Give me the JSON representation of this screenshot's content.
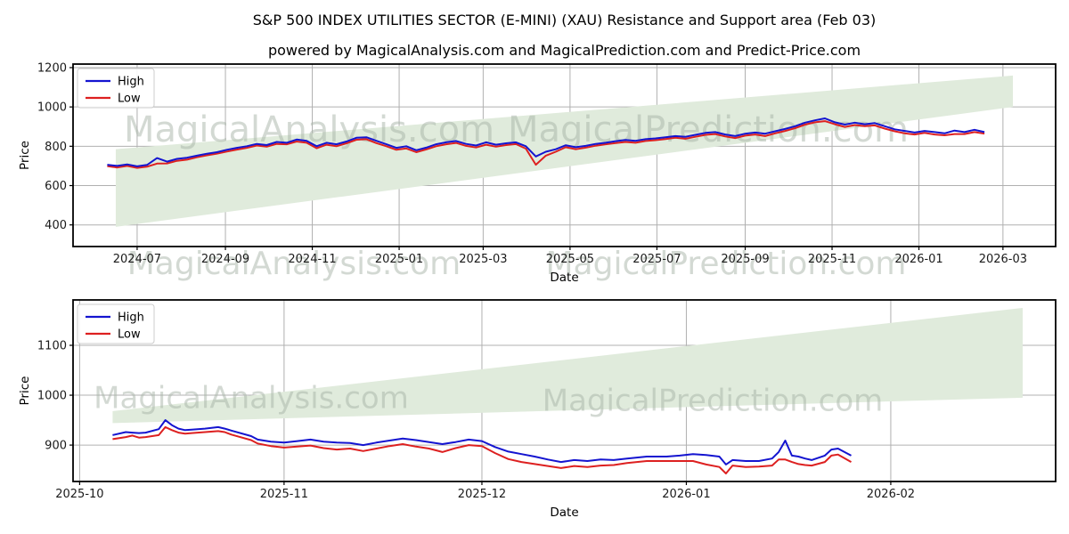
{
  "title": "S&P 500 INDEX UTILITIES SECTOR (E-MINI) (XAU) Resistance and Support area (Feb 03)",
  "subtitle": "powered by MagicalAnalysis.com and MagicalPrediction.com and Predict-Price.com",
  "watermark": {
    "text1": "MagicalAnalysis.com",
    "text2": "MagicalPrediction.com"
  },
  "colors": {
    "high": "#1414d0",
    "low": "#dd2020",
    "band": "#e0ebdc",
    "grid": "#b0b0b0",
    "watermark": "#a8b4a8",
    "spine": "#000000",
    "tick_text": "#1a1a1a"
  },
  "chart_data": [
    {
      "type": "line",
      "id": "overview",
      "title": "",
      "xlabel": "Date",
      "ylabel": "Price",
      "legend": [
        {
          "label": "High",
          "color_key": "high"
        },
        {
          "label": "Low",
          "color_key": "low"
        }
      ],
      "legend_position": "upper left",
      "grid": true,
      "ylim": [
        290,
        1218
      ],
      "yticks": [
        400,
        600,
        800,
        1000,
        1200
      ],
      "xlim": [
        "2024-05-17",
        "2026-04-07"
      ],
      "xticks": [
        {
          "label": "2024-07",
          "date": "2024-07-01"
        },
        {
          "label": "2024-09",
          "date": "2024-09-01"
        },
        {
          "label": "2024-11",
          "date": "2024-11-01"
        },
        {
          "label": "2025-01",
          "date": "2025-01-01"
        },
        {
          "label": "2025-03",
          "date": "2025-03-01"
        },
        {
          "label": "2025-05",
          "date": "2025-05-01"
        },
        {
          "label": "2025-07",
          "date": "2025-07-01"
        },
        {
          "label": "2025-09",
          "date": "2025-09-01"
        },
        {
          "label": "2025-11",
          "date": "2025-11-01"
        },
        {
          "label": "2026-01",
          "date": "2026-01-01"
        },
        {
          "label": "2026-03",
          "date": "2026-03-01"
        }
      ],
      "band": {
        "x": [
          "2024-06-16",
          "2026-03-08"
        ],
        "top": [
          785,
          1160
        ],
        "bottom": [
          390,
          1000
        ]
      },
      "series": {
        "dates": [
          "2024-06-10",
          "2024-06-17",
          "2024-06-24",
          "2024-07-01",
          "2024-07-08",
          "2024-07-15",
          "2024-07-22",
          "2024-07-29",
          "2024-08-05",
          "2024-08-12",
          "2024-08-19",
          "2024-08-26",
          "2024-09-02",
          "2024-09-09",
          "2024-09-16",
          "2024-09-23",
          "2024-09-30",
          "2024-10-07",
          "2024-10-14",
          "2024-10-21",
          "2024-10-28",
          "2024-11-04",
          "2024-11-11",
          "2024-11-18",
          "2024-11-25",
          "2024-12-02",
          "2024-12-09",
          "2024-12-16",
          "2024-12-23",
          "2024-12-30",
          "2025-01-06",
          "2025-01-13",
          "2025-01-20",
          "2025-01-27",
          "2025-02-03",
          "2025-02-10",
          "2025-02-17",
          "2025-02-24",
          "2025-03-03",
          "2025-03-10",
          "2025-03-17",
          "2025-03-24",
          "2025-03-31",
          "2025-04-07",
          "2025-04-14",
          "2025-04-21",
          "2025-04-28",
          "2025-05-05",
          "2025-05-12",
          "2025-05-19",
          "2025-05-26",
          "2025-06-02",
          "2025-06-09",
          "2025-06-16",
          "2025-06-23",
          "2025-06-30",
          "2025-07-07",
          "2025-07-14",
          "2025-07-21",
          "2025-07-28",
          "2025-08-04",
          "2025-08-11",
          "2025-08-18",
          "2025-08-25",
          "2025-09-01",
          "2025-09-08",
          "2025-09-15",
          "2025-09-22",
          "2025-09-29",
          "2025-10-06",
          "2025-10-13",
          "2025-10-20",
          "2025-10-27",
          "2025-11-03",
          "2025-11-10",
          "2025-11-17",
          "2025-11-24",
          "2025-12-01",
          "2025-12-08",
          "2025-12-15",
          "2025-12-22",
          "2025-12-29",
          "2026-01-05",
          "2026-01-12",
          "2026-01-19",
          "2026-01-26",
          "2026-02-02",
          "2026-02-09",
          "2026-02-16"
        ],
        "high": [
          706,
          700,
          708,
          698,
          705,
          740,
          722,
          736,
          742,
          752,
          762,
          770,
          782,
          792,
          800,
          812,
          806,
          822,
          818,
          834,
          828,
          800,
          818,
          810,
          824,
          843,
          846,
          828,
          810,
          792,
          800,
          780,
          793,
          810,
          820,
          827,
          812,
          804,
          820,
          808,
          815,
          820,
          800,
          748,
          772,
          785,
          805,
          795,
          802,
          812,
          818,
          826,
          832,
          828,
          836,
          840,
          846,
          852,
          848,
          858,
          868,
          872,
          860,
          852,
          864,
          870,
          864,
          876,
          888,
          902,
          920,
          932,
          942,
          922,
          910,
          920,
          912,
          918,
          902,
          886,
          878,
          870,
          878,
          872,
          866,
          880,
          872,
          884,
          872
        ],
        "low": [
          699,
          692,
          700,
          690,
          696,
          712,
          713,
          726,
          732,
          744,
          754,
          762,
          773,
          783,
          792,
          804,
          798,
          812,
          810,
          824,
          818,
          790,
          808,
          800,
          815,
          833,
          836,
          816,
          800,
          782,
          789,
          770,
          784,
          800,
          810,
          817,
          802,
          794,
          808,
          798,
          806,
          811,
          788,
          706,
          752,
          772,
          795,
          785,
          793,
          803,
          810,
          816,
          822,
          818,
          827,
          831,
          837,
          843,
          838,
          848,
          858,
          862,
          850,
          842,
          854,
          860,
          852,
          866,
          878,
          892,
          910,
          922,
          928,
          912,
          898,
          908,
          902,
          906,
          890,
          876,
          866,
          860,
          868,
          860,
          856,
          862,
          862,
          872,
          864
        ]
      }
    },
    {
      "type": "line",
      "id": "recent-detail",
      "title": "",
      "xlabel": "Date",
      "ylabel": "Price",
      "legend": [
        {
          "label": "High",
          "color_key": "high"
        },
        {
          "label": "Low",
          "color_key": "low"
        }
      ],
      "legend_position": "upper left",
      "grid": true,
      "ylim": [
        827,
        1191
      ],
      "yticks": [
        900,
        1000,
        1100
      ],
      "xlim": [
        "2025-09-30",
        "2026-02-26"
      ],
      "xticks": [
        {
          "label": "2025-10",
          "date": "2025-10-01"
        },
        {
          "label": "2025-11",
          "date": "2025-11-01"
        },
        {
          "label": "2025-12",
          "date": "2025-12-01"
        },
        {
          "label": "2026-01",
          "date": "2026-01-01"
        },
        {
          "label": "2026-02",
          "date": "2026-02-01"
        }
      ],
      "band": {
        "x": [
          "2025-10-06",
          "2026-02-21"
        ],
        "top": [
          968,
          1175
        ],
        "bottom": [
          944,
          995
        ]
      },
      "series": {
        "dates": [
          "2025-10-06",
          "2025-10-08",
          "2025-10-09",
          "2025-10-10",
          "2025-10-11",
          "2025-10-13",
          "2025-10-14",
          "2025-10-15",
          "2025-10-16",
          "2025-10-17",
          "2025-10-18",
          "2025-10-20",
          "2025-10-22",
          "2025-10-23",
          "2025-10-24",
          "2025-10-27",
          "2025-10-28",
          "2025-10-30",
          "2025-11-01",
          "2025-11-03",
          "2025-11-05",
          "2025-11-07",
          "2025-11-09",
          "2025-11-11",
          "2025-11-13",
          "2025-11-15",
          "2025-11-17",
          "2025-11-19",
          "2025-11-21",
          "2025-11-23",
          "2025-11-25",
          "2025-11-27",
          "2025-11-29",
          "2025-12-01",
          "2025-12-03",
          "2025-12-05",
          "2025-12-07",
          "2025-12-09",
          "2025-12-11",
          "2025-12-13",
          "2025-12-15",
          "2025-12-17",
          "2025-12-19",
          "2025-12-21",
          "2025-12-23",
          "2025-12-26",
          "2025-12-29",
          "2025-12-31",
          "2026-01-02",
          "2026-01-04",
          "2026-01-06",
          "2026-01-07",
          "2026-01-08",
          "2026-01-10",
          "2026-01-12",
          "2026-01-14",
          "2026-01-15",
          "2026-01-16",
          "2026-01-17",
          "2026-01-18",
          "2026-01-19",
          "2026-01-20",
          "2026-01-22",
          "2026-01-23",
          "2026-01-24",
          "2026-01-26"
        ],
        "high": [
          920,
          926,
          925,
          924,
          925,
          932,
          950,
          940,
          933,
          930,
          931,
          933,
          936,
          933,
          929,
          918,
          911,
          907,
          905,
          908,
          911,
          907,
          905,
          904,
          900,
          905,
          909,
          913,
          910,
          906,
          902,
          906,
          911,
          908,
          896,
          887,
          882,
          877,
          871,
          866,
          870,
          868,
          871,
          870,
          873,
          877,
          877,
          879,
          882,
          880,
          877,
          861,
          870,
          868,
          868,
          873,
          886,
          909,
          879,
          877,
          873,
          870,
          879,
          891,
          893,
          879
        ],
        "low": [
          912,
          916,
          919,
          915,
          916,
          920,
          936,
          930,
          925,
          923,
          924,
          926,
          928,
          926,
          921,
          910,
          903,
          898,
          895,
          897,
          899,
          894,
          891,
          893,
          888,
          893,
          898,
          902,
          897,
          893,
          886,
          894,
          900,
          898,
          884,
          872,
          866,
          862,
          858,
          854,
          858,
          856,
          859,
          860,
          864,
          868,
          868,
          868,
          868,
          861,
          856,
          843,
          859,
          856,
          857,
          859,
          871,
          871,
          866,
          862,
          860,
          859,
          866,
          879,
          881,
          866
        ]
      }
    }
  ]
}
